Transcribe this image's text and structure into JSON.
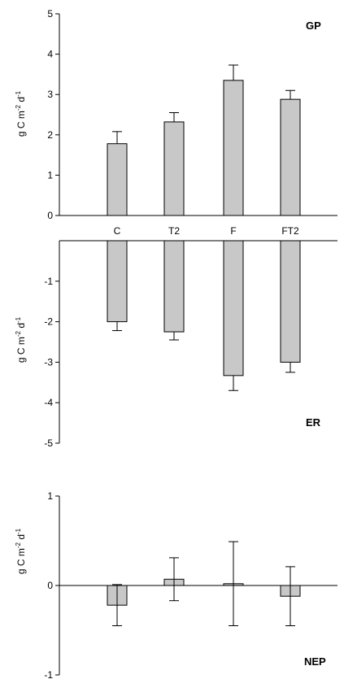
{
  "chart_data": [
    {
      "type": "bar",
      "title": "GP",
      "ylabel": "g C m-2 d-1",
      "ylabel_parts": [
        "g C m",
        "-2",
        " d",
        "-1"
      ],
      "categories": [
        "C",
        "T2",
        "F",
        "FT2"
      ],
      "values": [
        1.78,
        2.32,
        3.35,
        2.88
      ],
      "errors": [
        0.3,
        0.23,
        0.38,
        0.22
      ],
      "ylim": [
        0,
        5
      ],
      "yticks": [
        "0",
        "1",
        "2",
        "3",
        "4",
        "5"
      ],
      "bar_color": "#c8c8c8",
      "grid": false
    },
    {
      "type": "bar",
      "title": "ER",
      "ylabel": "g C m-2 d-1",
      "ylabel_parts": [
        "g C m",
        "-2",
        " d",
        "-1"
      ],
      "categories": [
        "C",
        "T2",
        "F",
        "FT2"
      ],
      "values": [
        -2.0,
        -2.25,
        -3.33,
        -3.0
      ],
      "errors": [
        0.22,
        0.2,
        0.37,
        0.25
      ],
      "ylim": [
        -5,
        0
      ],
      "yticks": [
        "-1",
        "-2",
        "-3",
        "-4",
        "-5"
      ],
      "bar_color": "#c8c8c8",
      "grid": false
    },
    {
      "type": "bar",
      "title": "NEP",
      "ylabel": "g C m-2 d-1",
      "ylabel_parts": [
        "g C m",
        "-2",
        " d",
        "-1"
      ],
      "categories": [
        "C",
        "T2",
        "F",
        "FT2"
      ],
      "values": [
        -0.22,
        0.07,
        0.02,
        -0.12
      ],
      "errors": [
        0.23,
        0.24,
        0.47,
        0.33
      ],
      "ylim": [
        -1,
        1
      ],
      "yticks": [
        "-1",
        "0",
        "1"
      ],
      "bar_color": "#c8c8c8",
      "grid": false
    }
  ]
}
